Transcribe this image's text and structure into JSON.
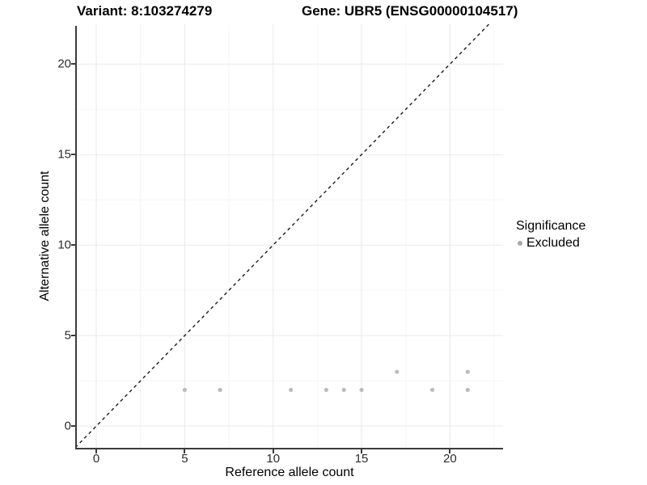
{
  "header": {
    "variant_title": "Variant: 8:103274279",
    "gene_title": "Gene: UBR5 (ENSG00000104517)"
  },
  "chart_data": {
    "type": "scatter",
    "title": "Variant: 8:103274279 — Gene: UBR5 (ENSG00000104517)",
    "xlabel": "Reference allele count",
    "ylabel": "Alternative allele count",
    "x_ticks": [
      0,
      5,
      10,
      15,
      20
    ],
    "y_ticks": [
      0,
      5,
      10,
      15,
      20
    ],
    "xlim": [
      -1.1,
      23.0
    ],
    "ylim": [
      -1.2,
      22.2
    ],
    "grid": "major+minor",
    "grid_major_color": "#e9e9e9",
    "grid_minor_color": "#f5f5f5",
    "reference_line": {
      "equation": "y = x",
      "style": "dashed",
      "color": "#1a1a1a"
    },
    "series": [
      {
        "name": "Excluded",
        "color": "#bcbcbc",
        "points": [
          {
            "x": 5,
            "y": 2
          },
          {
            "x": 7,
            "y": 2
          },
          {
            "x": 11,
            "y": 2
          },
          {
            "x": 13,
            "y": 2
          },
          {
            "x": 14,
            "y": 2
          },
          {
            "x": 15,
            "y": 2
          },
          {
            "x": 17,
            "y": 3
          },
          {
            "x": 19,
            "y": 2
          },
          {
            "x": 21,
            "y": 2
          },
          {
            "x": 21,
            "y": 3
          }
        ]
      }
    ],
    "legend": {
      "title": "Significance",
      "position": "right",
      "entries": [
        {
          "label": "Excluded",
          "color": "#a9a9a9"
        }
      ]
    }
  }
}
